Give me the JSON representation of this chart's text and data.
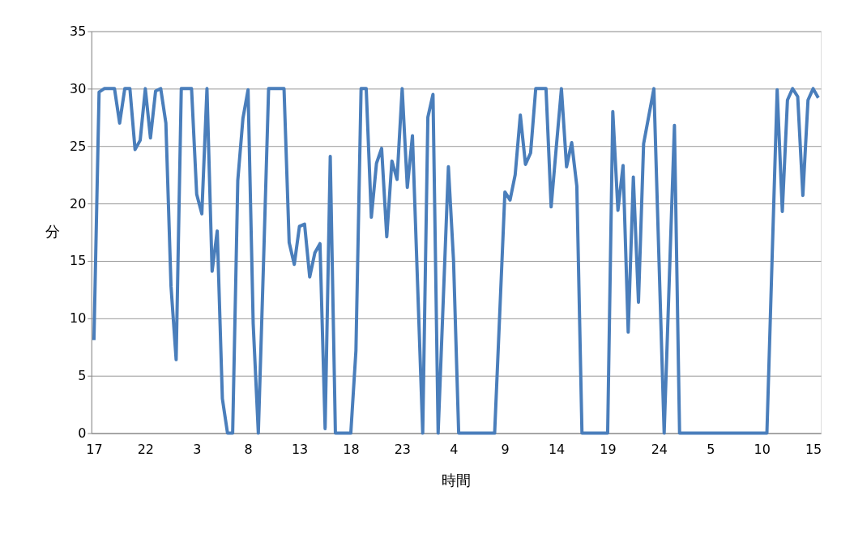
{
  "chart_data": {
    "type": "line",
    "xlabel": "時間",
    "ylabel": "分",
    "categories": [
      "17",
      null,
      null,
      null,
      null,
      null,
      null,
      null,
      null,
      null,
      "22",
      null,
      null,
      null,
      null,
      null,
      null,
      null,
      null,
      null,
      "3",
      null,
      null,
      null,
      null,
      null,
      null,
      null,
      null,
      null,
      "8",
      null,
      null,
      null,
      null,
      null,
      null,
      null,
      null,
      null,
      "13",
      null,
      null,
      null,
      null,
      null,
      null,
      null,
      null,
      null,
      "18",
      null,
      null,
      null,
      null,
      null,
      null,
      null,
      null,
      null,
      "23",
      null,
      null,
      null,
      null,
      null,
      null,
      null,
      null,
      null,
      "4",
      null,
      null,
      null,
      null,
      null,
      null,
      null,
      null,
      null,
      "9",
      null,
      null,
      null,
      null,
      null,
      null,
      null,
      null,
      null,
      "14",
      null,
      null,
      null,
      null,
      null,
      null,
      null,
      null,
      null,
      "19",
      null,
      null,
      null,
      null,
      null,
      null,
      null,
      null,
      null,
      "24",
      null,
      null,
      null,
      null,
      null,
      null,
      null,
      null,
      null,
      "5",
      null,
      null,
      null,
      null,
      null,
      null,
      null,
      null,
      null,
      "10",
      null,
      null,
      null,
      null,
      null,
      null,
      null,
      null,
      null,
      "15",
      null
    ],
    "series": [
      {
        "color": "#4a7ebb",
        "values": [
          8.1,
          29.7,
          30,
          30,
          30,
          27,
          30,
          30,
          24.7,
          25.5,
          30,
          25.7,
          29.8,
          30,
          27,
          12.8,
          6.4,
          30,
          30,
          30,
          20.8,
          19.1,
          30,
          14.1,
          17.6,
          3.0,
          0,
          0,
          22,
          27.4,
          29.9,
          9.5,
          0,
          14.7,
          30,
          30,
          30,
          30,
          16.6,
          14.7,
          18.0,
          18.2,
          13.6,
          15.7,
          16.5,
          0.4,
          24.1,
          0,
          0,
          0,
          0,
          7.2,
          30,
          30,
          18.8,
          23.5,
          24.8,
          17.1,
          23.7,
          22.1,
          30,
          21.4,
          25.9,
          13,
          0,
          27.5,
          29.5,
          0,
          11.6,
          23.2,
          15,
          0,
          0,
          0,
          0,
          0,
          0,
          0,
          0,
          10.5,
          21,
          20.3,
          22.5,
          27.7,
          23.4,
          24.4,
          30,
          30,
          30,
          19.7,
          24.9,
          30,
          23.2,
          25.3,
          21.5,
          0,
          0,
          0,
          0,
          0,
          0,
          28,
          19.4,
          23.3,
          8.8,
          22.3,
          11.4,
          25.2,
          27.6,
          30,
          15,
          0,
          13.4,
          26.8,
          0,
          0,
          0,
          0,
          0,
          0,
          0,
          0,
          0,
          0,
          0,
          0,
          0,
          0,
          0,
          0,
          0,
          0,
          15,
          29.9,
          19.3,
          29,
          30,
          29.3,
          20.7,
          29,
          30,
          29.2
        ]
      }
    ],
    "ylim": [
      0,
      35
    ],
    "yticks": [
      0,
      5,
      10,
      15,
      20,
      25,
      30,
      35
    ],
    "grid": "y",
    "marker": "none",
    "line_style": "solid"
  }
}
